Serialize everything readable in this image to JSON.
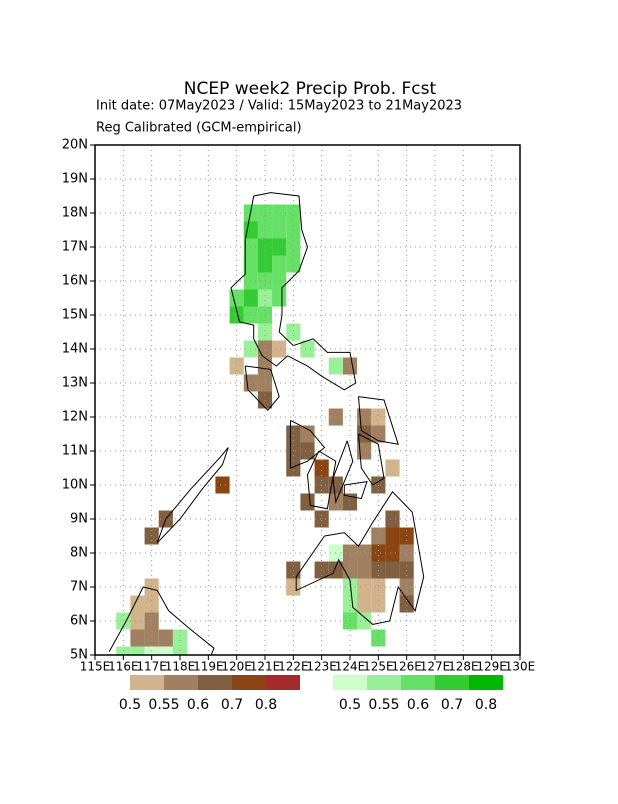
{
  "chart_data": {
    "type": "grid-map",
    "title": "NCEP week2 Precip Prob. Fcst",
    "subtitle": "Init date: 07May2023 / Valid: 15May2023 to 21May2023",
    "note": "Reg Calibrated (GCM-empirical)",
    "xlim": [
      115,
      130
    ],
    "ylim": [
      5,
      20
    ],
    "xticks": [
      {
        "value": 115,
        "label": "115E"
      },
      {
        "value": 116,
        "label": "116E"
      },
      {
        "value": 117,
        "label": "117E"
      },
      {
        "value": 118,
        "label": "118E"
      },
      {
        "value": 119,
        "label": "119E"
      },
      {
        "value": 120,
        "label": "120E"
      },
      {
        "value": 121,
        "label": "121E"
      },
      {
        "value": 122,
        "label": "122E"
      },
      {
        "value": 123,
        "label": "123E"
      },
      {
        "value": 124,
        "label": "124E"
      },
      {
        "value": 125,
        "label": "125E"
      },
      {
        "value": 126,
        "label": "126E"
      },
      {
        "value": 127,
        "label": "127E"
      },
      {
        "value": 128,
        "label": "128E"
      },
      {
        "value": 129,
        "label": "129E"
      },
      {
        "value": 130,
        "label": "130E"
      }
    ],
    "yticks": [
      {
        "value": 5,
        "label": "5N"
      },
      {
        "value": 6,
        "label": "6N"
      },
      {
        "value": 7,
        "label": "7N"
      },
      {
        "value": 8,
        "label": "8N"
      },
      {
        "value": 9,
        "label": "9N"
      },
      {
        "value": 10,
        "label": "10N"
      },
      {
        "value": 11,
        "label": "11N"
      },
      {
        "value": 12,
        "label": "12N"
      },
      {
        "value": 13,
        "label": "13N"
      },
      {
        "value": 14,
        "label": "14N"
      },
      {
        "value": 15,
        "label": "15N"
      },
      {
        "value": 16,
        "label": "16N"
      },
      {
        "value": 17,
        "label": "17N"
      },
      {
        "value": 18,
        "label": "18N"
      },
      {
        "value": 19,
        "label": "19N"
      },
      {
        "value": 20,
        "label": "20N"
      }
    ],
    "grid": true,
    "cell_size": 0.5,
    "levels": [
      0.5,
      0.55,
      0.6,
      0.7,
      0.8
    ],
    "dry_colors": [
      "#d2b48c",
      "#a08060",
      "#806040",
      "#8b4513",
      "#a52a2a"
    ],
    "wet_colors": [
      "#ccffcc",
      "#99f099",
      "#66e066",
      "#33cc33",
      "#00b800"
    ],
    "dry": [
      [
        121,
        14,
        0.55
      ],
      [
        121.5,
        14,
        0.5
      ],
      [
        120,
        13.5,
        0.5
      ],
      [
        121,
        13.5,
        0.55
      ],
      [
        124,
        13.5,
        0.55
      ],
      [
        120.5,
        13,
        0.55
      ],
      [
        121,
        13,
        0.55
      ],
      [
        121,
        12.5,
        0.6
      ],
      [
        123.5,
        12,
        0.55
      ],
      [
        124.5,
        12,
        0.55
      ],
      [
        125,
        12,
        0.5
      ],
      [
        122,
        11.5,
        0.6
      ],
      [
        122.5,
        11.5,
        0.55
      ],
      [
        124.5,
        11.5,
        0.6
      ],
      [
        125,
        11.5,
        0.55
      ],
      [
        122,
        11,
        0.6
      ],
      [
        122.5,
        11,
        0.6
      ],
      [
        124.5,
        11,
        0.55
      ],
      [
        122,
        10.5,
        0.6
      ],
      [
        123,
        10.5,
        0.7
      ],
      [
        125.5,
        10.5,
        0.5
      ],
      [
        123,
        10,
        0.6
      ],
      [
        123.5,
        10,
        0.6
      ],
      [
        125,
        10,
        0.6
      ],
      [
        122.5,
        9.5,
        0.6
      ],
      [
        123.5,
        9.5,
        0.55
      ],
      [
        124,
        9.5,
        0.6
      ],
      [
        123,
        9,
        0.6
      ],
      [
        125.5,
        9,
        0.6
      ],
      [
        125,
        8.5,
        0.55
      ],
      [
        125.5,
        8.5,
        0.7
      ],
      [
        126,
        8.5,
        0.7
      ],
      [
        124,
        8,
        0.55
      ],
      [
        124.5,
        8,
        0.55
      ],
      [
        125,
        8,
        0.7
      ],
      [
        125.5,
        8,
        0.7
      ],
      [
        126,
        8,
        0.55
      ],
      [
        122,
        7.5,
        0.6
      ],
      [
        123,
        7.5,
        0.6
      ],
      [
        123.5,
        7.5,
        0.6
      ],
      [
        124,
        7.5,
        0.55
      ],
      [
        124.5,
        7.5,
        0.55
      ],
      [
        125,
        7.5,
        0.6
      ],
      [
        125.5,
        7.5,
        0.6
      ],
      [
        126,
        7.5,
        0.6
      ],
      [
        122,
        7,
        0.5
      ],
      [
        124.5,
        7,
        0.5
      ],
      [
        125,
        7,
        0.5
      ],
      [
        126,
        7,
        0.55
      ],
      [
        124.5,
        6.5,
        0.5
      ],
      [
        125,
        6.5,
        0.5
      ],
      [
        126,
        6.5,
        0.6
      ],
      [
        119.5,
        10,
        0.7
      ],
      [
        117.5,
        9,
        0.6
      ],
      [
        117,
        8.5,
        0.6
      ],
      [
        117,
        7,
        0.5
      ],
      [
        116.5,
        6.5,
        0.5
      ],
      [
        117,
        6.5,
        0.5
      ],
      [
        116.5,
        6,
        0.5
      ],
      [
        117,
        6,
        0.55
      ],
      [
        116.5,
        5.5,
        0.55
      ],
      [
        117,
        5.5,
        0.55
      ],
      [
        117.5,
        5.5,
        0.55
      ]
    ],
    "wet": [
      [
        120.5,
        18,
        0.6
      ],
      [
        121,
        18,
        0.6
      ],
      [
        121.5,
        18,
        0.6
      ],
      [
        122,
        18,
        0.6
      ],
      [
        120.5,
        17.5,
        0.7
      ],
      [
        121,
        17.5,
        0.6
      ],
      [
        121.5,
        17.5,
        0.6
      ],
      [
        122,
        17.5,
        0.6
      ],
      [
        120.5,
        17,
        0.6
      ],
      [
        121,
        17,
        0.7
      ],
      [
        121.5,
        17,
        0.7
      ],
      [
        122,
        17,
        0.6
      ],
      [
        120.5,
        16.5,
        0.6
      ],
      [
        121,
        16.5,
        0.7
      ],
      [
        121.5,
        16.5,
        0.6
      ],
      [
        122,
        16.5,
        0.6
      ],
      [
        120.5,
        16,
        0.6
      ],
      [
        121,
        16,
        0.6
      ],
      [
        121.5,
        16,
        0.6
      ],
      [
        120,
        15.5,
        0.6
      ],
      [
        120.5,
        15.5,
        0.7
      ],
      [
        121,
        15.5,
        0.55
      ],
      [
        121.5,
        15.5,
        0.6
      ],
      [
        120,
        15,
        0.7
      ],
      [
        120.5,
        15,
        0.6
      ],
      [
        121,
        15,
        0.6
      ],
      [
        121,
        14.5,
        0.55
      ],
      [
        122,
        14.5,
        0.55
      ],
      [
        120.5,
        14,
        0.55
      ],
      [
        122.5,
        14,
        0.55
      ],
      [
        123.5,
        13.5,
        0.55
      ],
      [
        123.5,
        8,
        0.5
      ],
      [
        124,
        7,
        0.55
      ],
      [
        124,
        6.5,
        0.55
      ],
      [
        124,
        6,
        0.6
      ],
      [
        124.5,
        6,
        0.55
      ],
      [
        125,
        5.5,
        0.6
      ],
      [
        116,
        6,
        0.55
      ],
      [
        118,
        5.5,
        0.55
      ],
      [
        116,
        5,
        0.55
      ],
      [
        116.5,
        5,
        0.55
      ],
      [
        117,
        5,
        0.5
      ],
      [
        117.5,
        5,
        0.5
      ],
      [
        118,
        5,
        0.55
      ]
    ]
  }
}
